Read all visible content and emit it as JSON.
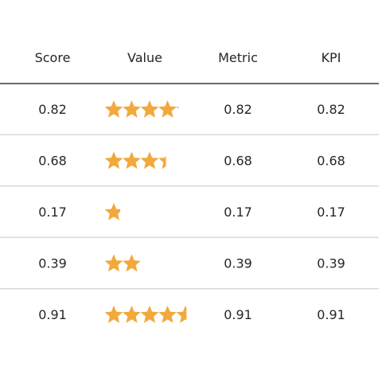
{
  "chart_data": {
    "type": "table",
    "columns": [
      "Score",
      "Value",
      "Metric",
      "KPI"
    ],
    "rows": [
      {
        "score": "0.82",
        "value": 0.82,
        "metric": "0.82",
        "kpi": "0.82"
      },
      {
        "score": "0.68",
        "value": 0.68,
        "metric": "0.68",
        "kpi": "0.68"
      },
      {
        "score": "0.17",
        "value": 0.17,
        "metric": "0.17",
        "kpi": "0.17"
      },
      {
        "score": "0.39",
        "value": 0.39,
        "metric": "0.39",
        "kpi": "0.39"
      },
      {
        "score": "0.91",
        "value": 0.91,
        "metric": "0.91",
        "kpi": "0.91"
      }
    ],
    "value_display": "star-rating",
    "star_max": 5,
    "colors": {
      "star": "#f2a93b",
      "header_rule": "#555555",
      "row_rule": "#d9d9d9",
      "text": "#262626"
    }
  }
}
